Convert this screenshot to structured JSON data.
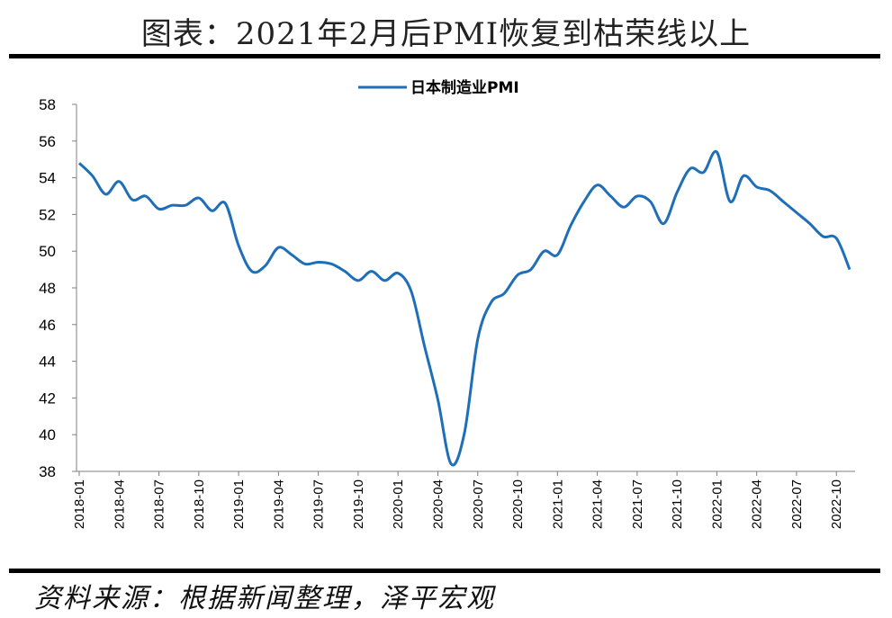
{
  "header": {
    "title": "图表：2021年2月后PMI恢复到枯荣线以上"
  },
  "footer": {
    "source": "资料来源：根据新闻整理，泽平宏观"
  },
  "chart_data": {
    "type": "line",
    "title": "",
    "xlabel": "",
    "ylabel": "",
    "ylim": [
      38,
      58
    ],
    "yticks": [
      38,
      40,
      42,
      44,
      46,
      48,
      50,
      52,
      54,
      56,
      58
    ],
    "grid": false,
    "legend_position": "top-center",
    "xtick_labels": [
      "2018-01",
      "2018-04",
      "2018-07",
      "2018-10",
      "2019-01",
      "2019-04",
      "2019-07",
      "2019-10",
      "2020-01",
      "2020-04",
      "2020-07",
      "2020-10",
      "2021-01",
      "2021-04",
      "2021-07",
      "2021-10",
      "2022-01",
      "2022-04",
      "2022-07",
      "2022-10"
    ],
    "x": [
      "2018-01",
      "2018-02",
      "2018-03",
      "2018-04",
      "2018-05",
      "2018-06",
      "2018-07",
      "2018-08",
      "2018-09",
      "2018-10",
      "2018-11",
      "2018-12",
      "2019-01",
      "2019-02",
      "2019-03",
      "2019-04",
      "2019-05",
      "2019-06",
      "2019-07",
      "2019-08",
      "2019-09",
      "2019-10",
      "2019-11",
      "2019-12",
      "2020-01",
      "2020-02",
      "2020-03",
      "2020-04",
      "2020-05",
      "2020-06",
      "2020-07",
      "2020-08",
      "2020-09",
      "2020-10",
      "2020-11",
      "2020-12",
      "2021-01",
      "2021-02",
      "2021-03",
      "2021-04",
      "2021-05",
      "2021-06",
      "2021-07",
      "2021-08",
      "2021-09",
      "2021-10",
      "2021-11",
      "2021-12",
      "2022-01",
      "2022-02",
      "2022-03",
      "2022-04",
      "2022-05",
      "2022-06",
      "2022-07",
      "2022-08",
      "2022-09",
      "2022-10",
      "2022-11"
    ],
    "series": [
      {
        "name": "日本制造业PMI",
        "color": "#1f6fb8",
        "values": [
          54.8,
          54.1,
          53.1,
          53.8,
          52.8,
          53.0,
          52.3,
          52.5,
          52.5,
          52.9,
          52.2,
          52.6,
          50.3,
          48.9,
          49.2,
          50.2,
          49.8,
          49.3,
          49.4,
          49.3,
          48.9,
          48.4,
          48.9,
          48.4,
          48.8,
          47.8,
          44.8,
          41.9,
          38.4,
          40.1,
          45.2,
          47.2,
          47.7,
          48.7,
          49.0,
          50.0,
          49.8,
          51.4,
          52.7,
          53.6,
          53.0,
          52.4,
          53.0,
          52.7,
          51.5,
          53.2,
          54.5,
          54.3,
          55.4,
          52.7,
          54.1,
          53.5,
          53.3,
          52.7,
          52.1,
          51.5,
          50.8,
          50.7,
          49.0
        ]
      }
    ]
  }
}
